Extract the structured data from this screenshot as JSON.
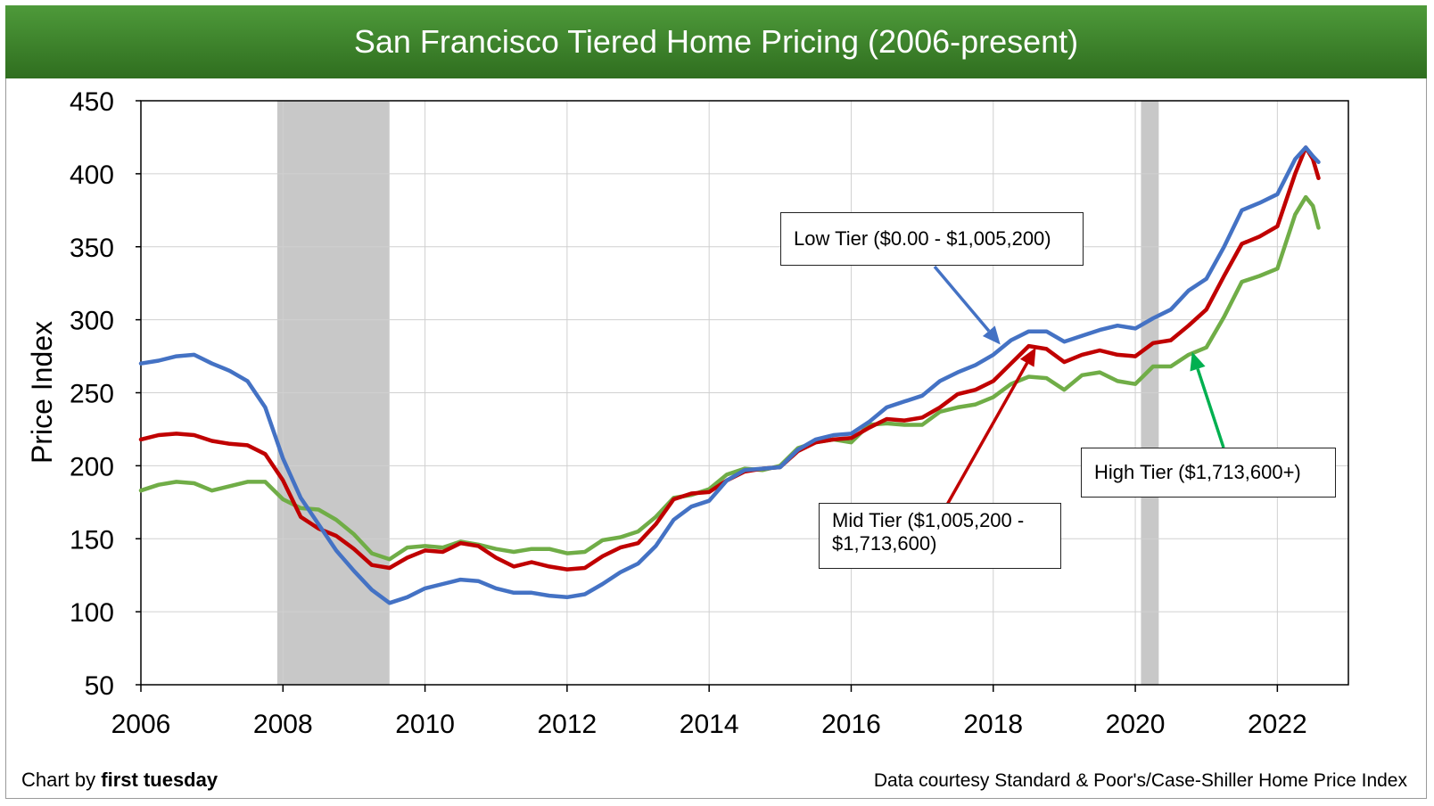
{
  "chart_data": {
    "type": "line",
    "title": "San Francisco Tiered Home Pricing (2006-present)",
    "ylabel": "Price Index",
    "xlim": [
      2006,
      2023
    ],
    "ylim": [
      50,
      450
    ],
    "xticks": [
      2006,
      2008,
      2010,
      2012,
      2014,
      2016,
      2018,
      2020,
      2022
    ],
    "yticks": [
      50,
      100,
      150,
      200,
      250,
      300,
      350,
      400,
      450
    ],
    "grid": true,
    "recessions": [
      [
        2007.92,
        2009.5
      ],
      [
        2020.08,
        2020.33
      ]
    ],
    "series": [
      {
        "name": "Low Tier ($0.00 - $1,005,200)",
        "color": "#4472c4",
        "points": [
          [
            2006.0,
            270
          ],
          [
            2006.25,
            272
          ],
          [
            2006.5,
            275
          ],
          [
            2006.75,
            276
          ],
          [
            2007.0,
            270
          ],
          [
            2007.25,
            265
          ],
          [
            2007.5,
            258
          ],
          [
            2007.75,
            240
          ],
          [
            2008.0,
            205
          ],
          [
            2008.25,
            178
          ],
          [
            2008.5,
            160
          ],
          [
            2008.75,
            142
          ],
          [
            2009.0,
            128
          ],
          [
            2009.25,
            115
          ],
          [
            2009.5,
            106
          ],
          [
            2009.75,
            110
          ],
          [
            2010.0,
            116
          ],
          [
            2010.25,
            119
          ],
          [
            2010.5,
            122
          ],
          [
            2010.75,
            121
          ],
          [
            2011.0,
            116
          ],
          [
            2011.25,
            113
          ],
          [
            2011.5,
            113
          ],
          [
            2011.75,
            111
          ],
          [
            2012.0,
            110
          ],
          [
            2012.25,
            112
          ],
          [
            2012.5,
            119
          ],
          [
            2012.75,
            127
          ],
          [
            2013.0,
            133
          ],
          [
            2013.25,
            145
          ],
          [
            2013.5,
            163
          ],
          [
            2013.75,
            172
          ],
          [
            2014.0,
            176
          ],
          [
            2014.25,
            190
          ],
          [
            2014.5,
            197
          ],
          [
            2014.75,
            198
          ],
          [
            2015.0,
            199
          ],
          [
            2015.25,
            211
          ],
          [
            2015.5,
            218
          ],
          [
            2015.75,
            221
          ],
          [
            2016.0,
            222
          ],
          [
            2016.25,
            230
          ],
          [
            2016.5,
            240
          ],
          [
            2016.75,
            244
          ],
          [
            2017.0,
            248
          ],
          [
            2017.25,
            258
          ],
          [
            2017.5,
            264
          ],
          [
            2017.75,
            269
          ],
          [
            2018.0,
            276
          ],
          [
            2018.25,
            286
          ],
          [
            2018.5,
            292
          ],
          [
            2018.75,
            292
          ],
          [
            2019.0,
            285
          ],
          [
            2019.25,
            289
          ],
          [
            2019.5,
            293
          ],
          [
            2019.75,
            296
          ],
          [
            2020.0,
            294
          ],
          [
            2020.25,
            301
          ],
          [
            2020.5,
            307
          ],
          [
            2020.75,
            320
          ],
          [
            2021.0,
            328
          ],
          [
            2021.25,
            350
          ],
          [
            2021.5,
            375
          ],
          [
            2021.75,
            380
          ],
          [
            2022.0,
            386
          ],
          [
            2022.25,
            410
          ],
          [
            2022.4,
            418
          ],
          [
            2022.5,
            412
          ],
          [
            2022.58,
            408
          ]
        ]
      },
      {
        "name": "Mid Tier ($1,005,200 - $1,713,600)",
        "color": "#c00000",
        "points": [
          [
            2006.0,
            218
          ],
          [
            2006.25,
            221
          ],
          [
            2006.5,
            222
          ],
          [
            2006.75,
            221
          ],
          [
            2007.0,
            217
          ],
          [
            2007.25,
            215
          ],
          [
            2007.5,
            214
          ],
          [
            2007.75,
            208
          ],
          [
            2008.0,
            190
          ],
          [
            2008.25,
            165
          ],
          [
            2008.5,
            157
          ],
          [
            2008.75,
            152
          ],
          [
            2009.0,
            143
          ],
          [
            2009.25,
            132
          ],
          [
            2009.5,
            130
          ],
          [
            2009.75,
            137
          ],
          [
            2010.0,
            142
          ],
          [
            2010.25,
            141
          ],
          [
            2010.5,
            147
          ],
          [
            2010.75,
            145
          ],
          [
            2011.0,
            137
          ],
          [
            2011.25,
            131
          ],
          [
            2011.5,
            134
          ],
          [
            2011.75,
            131
          ],
          [
            2012.0,
            129
          ],
          [
            2012.25,
            130
          ],
          [
            2012.5,
            138
          ],
          [
            2012.75,
            144
          ],
          [
            2013.0,
            147
          ],
          [
            2013.25,
            160
          ],
          [
            2013.5,
            177
          ],
          [
            2013.75,
            181
          ],
          [
            2014.0,
            182
          ],
          [
            2014.25,
            190
          ],
          [
            2014.5,
            196
          ],
          [
            2014.75,
            198
          ],
          [
            2015.0,
            199
          ],
          [
            2015.25,
            210
          ],
          [
            2015.5,
            216
          ],
          [
            2015.75,
            218
          ],
          [
            2016.0,
            219
          ],
          [
            2016.25,
            226
          ],
          [
            2016.5,
            232
          ],
          [
            2016.75,
            231
          ],
          [
            2017.0,
            233
          ],
          [
            2017.25,
            240
          ],
          [
            2017.5,
            249
          ],
          [
            2017.75,
            252
          ],
          [
            2018.0,
            258
          ],
          [
            2018.25,
            270
          ],
          [
            2018.5,
            282
          ],
          [
            2018.75,
            280
          ],
          [
            2019.0,
            271
          ],
          [
            2019.25,
            276
          ],
          [
            2019.5,
            279
          ],
          [
            2019.75,
            276
          ],
          [
            2020.0,
            275
          ],
          [
            2020.25,
            284
          ],
          [
            2020.5,
            286
          ],
          [
            2020.75,
            296
          ],
          [
            2021.0,
            307
          ],
          [
            2021.25,
            330
          ],
          [
            2021.5,
            352
          ],
          [
            2021.75,
            357
          ],
          [
            2022.0,
            364
          ],
          [
            2022.25,
            400
          ],
          [
            2022.4,
            418
          ],
          [
            2022.5,
            410
          ],
          [
            2022.58,
            397
          ]
        ]
      },
      {
        "name": "High Tier ($1,713,600+)",
        "color": "#70ad47",
        "points": [
          [
            2006.0,
            183
          ],
          [
            2006.25,
            187
          ],
          [
            2006.5,
            189
          ],
          [
            2006.75,
            188
          ],
          [
            2007.0,
            183
          ],
          [
            2007.25,
            186
          ],
          [
            2007.5,
            189
          ],
          [
            2007.75,
            189
          ],
          [
            2008.0,
            177
          ],
          [
            2008.25,
            171
          ],
          [
            2008.5,
            170
          ],
          [
            2008.75,
            163
          ],
          [
            2009.0,
            153
          ],
          [
            2009.25,
            140
          ],
          [
            2009.5,
            136
          ],
          [
            2009.75,
            144
          ],
          [
            2010.0,
            145
          ],
          [
            2010.25,
            144
          ],
          [
            2010.5,
            148
          ],
          [
            2010.75,
            146
          ],
          [
            2011.0,
            143
          ],
          [
            2011.25,
            141
          ],
          [
            2011.5,
            143
          ],
          [
            2011.75,
            143
          ],
          [
            2012.0,
            140
          ],
          [
            2012.25,
            141
          ],
          [
            2012.5,
            149
          ],
          [
            2012.75,
            151
          ],
          [
            2013.0,
            155
          ],
          [
            2013.25,
            165
          ],
          [
            2013.5,
            178
          ],
          [
            2013.75,
            180
          ],
          [
            2014.0,
            184
          ],
          [
            2014.25,
            194
          ],
          [
            2014.5,
            198
          ],
          [
            2014.75,
            197
          ],
          [
            2015.0,
            200
          ],
          [
            2015.25,
            212
          ],
          [
            2015.5,
            216
          ],
          [
            2015.75,
            218
          ],
          [
            2016.0,
            216
          ],
          [
            2016.25,
            228
          ],
          [
            2016.5,
            229
          ],
          [
            2016.75,
            228
          ],
          [
            2017.0,
            228
          ],
          [
            2017.25,
            237
          ],
          [
            2017.5,
            240
          ],
          [
            2017.75,
            242
          ],
          [
            2018.0,
            247
          ],
          [
            2018.25,
            256
          ],
          [
            2018.5,
            261
          ],
          [
            2018.75,
            260
          ],
          [
            2019.0,
            252
          ],
          [
            2019.25,
            262
          ],
          [
            2019.5,
            264
          ],
          [
            2019.75,
            258
          ],
          [
            2020.0,
            256
          ],
          [
            2020.25,
            268
          ],
          [
            2020.5,
            268
          ],
          [
            2020.75,
            276
          ],
          [
            2021.0,
            281
          ],
          [
            2021.25,
            302
          ],
          [
            2021.5,
            326
          ],
          [
            2021.75,
            330
          ],
          [
            2022.0,
            335
          ],
          [
            2022.25,
            372
          ],
          [
            2022.4,
            384
          ],
          [
            2022.5,
            378
          ],
          [
            2022.58,
            363
          ]
        ]
      }
    ],
    "annotations": [
      {
        "text": "Low Tier ($0.00 - $1,005,200)",
        "arrow_to": [
          2018.1,
          283
        ]
      },
      {
        "text_lines": [
          "Mid Tier ($1,005,200 -",
          "$1,713,600)"
        ],
        "arrow_to": [
          2018.6,
          281
        ]
      },
      {
        "text": "High Tier ($1,713,600+)",
        "arrow_to": [
          2020.8,
          278
        ]
      }
    ]
  },
  "footer": {
    "credit_prefix": "Chart by ",
    "credit_brand": "first tuesday",
    "source": "Data courtesy Standard & Poor's/Case-Shiller Home Price Index"
  }
}
